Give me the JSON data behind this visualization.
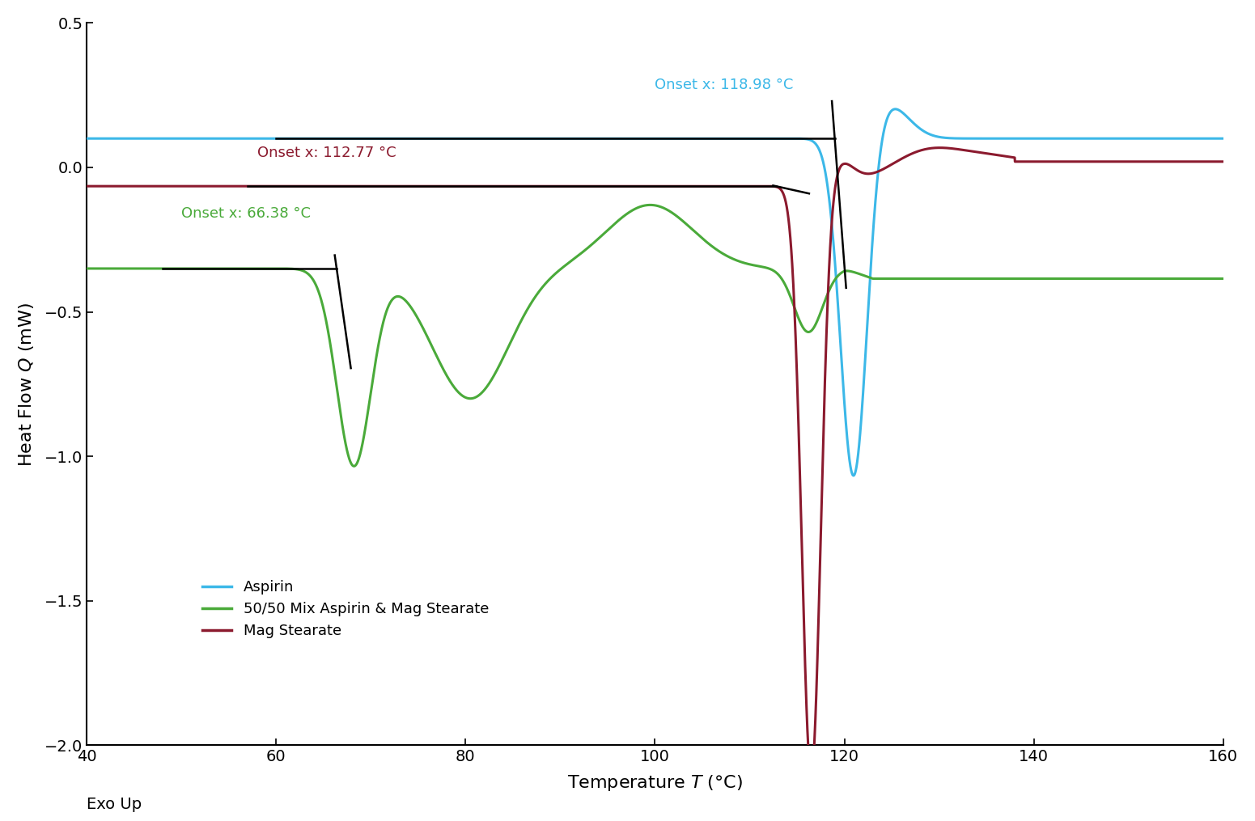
{
  "xlim": [
    40,
    160
  ],
  "ylim": [
    -2.0,
    0.5
  ],
  "xticks": [
    40,
    60,
    80,
    100,
    120,
    140,
    160
  ],
  "yticks": [
    -2.0,
    -1.5,
    -1.0,
    -0.5,
    0.0,
    0.5
  ],
  "exo_up_label": "Exo Up",
  "aspirin_color": "#3cb8e8",
  "mix_color": "#4aaa3a",
  "mag_color": "#8b1a2e",
  "onset_line_color": "#000000",
  "aspirin_onset_x": 118.98,
  "aspirin_onset_label": "Onset x: 118.98 °C",
  "mix_onset_x": 66.38,
  "mix_onset_label": "Onset x: 66.38 °C",
  "mag_onset_x": 112.77,
  "mag_onset_label": "Onset x: 112.77 °C",
  "legend_aspirin": "Aspirin",
  "legend_mix": "50/50 Mix Aspirin & Mag Stearate",
  "legend_mag": "Mag Stearate",
  "bg_color": "#ffffff",
  "label_fontsize": 16,
  "tick_fontsize": 14,
  "legend_fontsize": 13,
  "annotation_fontsize": 13,
  "line_width": 2.2
}
